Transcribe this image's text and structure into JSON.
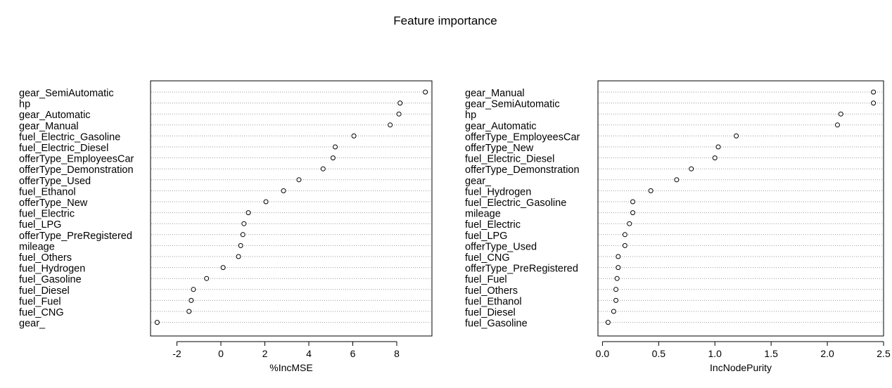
{
  "title": "Feature importance",
  "chart_data": [
    {
      "type": "scatter",
      "xlabel": "%IncMSE",
      "xlim": [
        -3.2,
        9.6
      ],
      "xticks": [
        -2,
        0,
        2,
        4,
        6,
        8
      ],
      "grid": "dotted horizontal",
      "categories": [
        "gear_SemiAutomatic",
        "hp",
        "gear_Automatic",
        "gear_Manual",
        "fuel_Electric_Gasoline",
        "fuel_Electric_Diesel",
        "offerType_EmployeesCar",
        "offerType_Demonstration",
        "offerType_Used",
        "fuel_Ethanol",
        "offerType_New",
        "fuel_Electric",
        "fuel_LPG",
        "offerType_PreRegistered",
        "mileage",
        "fuel_Others",
        "fuel_Hydrogen",
        "fuel_Gasoline",
        "fuel_Diesel",
        "fuel_Fuel",
        "fuel_CNG",
        "gear_"
      ],
      "values": [
        9.3,
        8.15,
        8.1,
        7.7,
        6.05,
        5.2,
        5.1,
        4.65,
        3.55,
        2.85,
        2.05,
        1.25,
        1.05,
        1.0,
        0.9,
        0.8,
        0.1,
        -0.65,
        -1.25,
        -1.35,
        -1.45,
        -2.9
      ]
    },
    {
      "type": "scatter",
      "xlabel": "IncNodePurity",
      "xlim": [
        -0.04,
        2.5
      ],
      "xticks": [
        "0.0",
        "0.5",
        "1.0",
        "1.5",
        "2.0",
        "2.5"
      ],
      "grid": "dotted horizontal",
      "categories": [
        "gear_Manual",
        "gear_SemiAutomatic",
        "hp",
        "gear_Automatic",
        "offerType_EmployeesCar",
        "offerType_New",
        "fuel_Electric_Diesel",
        "offerType_Demonstration",
        "gear_",
        "fuel_Hydrogen",
        "fuel_Electric_Gasoline",
        "mileage",
        "fuel_Electric",
        "fuel_LPG",
        "offerType_Used",
        "fuel_CNG",
        "offerType_PreRegistered",
        "fuel_Fuel",
        "fuel_Others",
        "fuel_Ethanol",
        "fuel_Diesel",
        "fuel_Gasoline"
      ],
      "values": [
        2.41,
        2.41,
        2.12,
        2.09,
        1.19,
        1.03,
        1.0,
        0.79,
        0.66,
        0.43,
        0.27,
        0.27,
        0.24,
        0.2,
        0.2,
        0.14,
        0.14,
        0.13,
        0.12,
        0.12,
        0.1,
        0.05
      ]
    }
  ]
}
